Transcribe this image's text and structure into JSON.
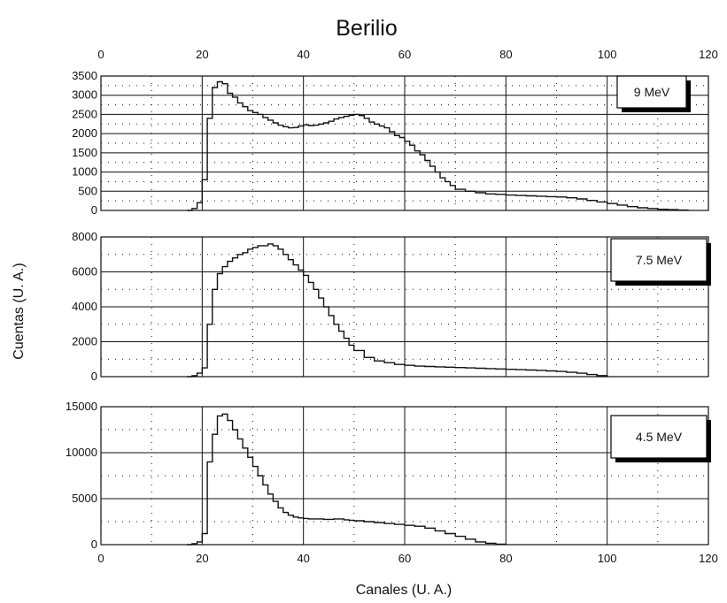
{
  "title": "Berilio",
  "ylabel": "Cuentas (U. A.)",
  "xlabel": "Canales (U. A.)",
  "chart_data": [
    {
      "type": "line",
      "step": true,
      "label": "9 MeV",
      "xlim": [
        0,
        120
      ],
      "ylim": [
        0,
        3500
      ],
      "x_ticks": [
        0,
        20,
        40,
        60,
        80,
        100,
        120
      ],
      "x_tick_labels": [
        "0",
        "20",
        "40",
        "60",
        "80",
        "100",
        "120"
      ],
      "x_tick_position": "top",
      "y_ticks": [
        0,
        500,
        1000,
        1500,
        2000,
        2500,
        3000,
        3500
      ],
      "y_tick_labels": [
        "0",
        "500",
        "1000",
        "1500",
        "2000",
        "2500",
        "3000",
        "3500"
      ],
      "grid": true,
      "x": [
        17,
        18,
        19,
        20,
        21,
        22,
        23,
        24,
        25,
        26,
        27,
        28,
        29,
        30,
        31,
        32,
        33,
        34,
        35,
        36,
        37,
        38,
        39,
        40,
        41,
        42,
        43,
        44,
        45,
        46,
        47,
        48,
        49,
        50,
        51,
        52,
        53,
        54,
        55,
        56,
        57,
        58,
        59,
        60,
        61,
        62,
        63,
        64,
        65,
        66,
        67,
        68,
        69,
        70,
        72,
        74,
        76,
        78,
        80,
        82,
        84,
        86,
        88,
        90,
        92,
        94,
        96,
        98,
        100,
        102,
        104,
        106,
        108,
        110,
        112,
        114,
        116
      ],
      "y": [
        0,
        50,
        200,
        800,
        2400,
        3200,
        3350,
        3300,
        3050,
        2950,
        2800,
        2700,
        2600,
        2550,
        2500,
        2420,
        2350,
        2280,
        2220,
        2180,
        2150,
        2160,
        2200,
        2230,
        2210,
        2220,
        2250,
        2280,
        2320,
        2380,
        2420,
        2450,
        2480,
        2500,
        2470,
        2400,
        2300,
        2250,
        2200,
        2150,
        2050,
        1950,
        1900,
        1800,
        1700,
        1550,
        1450,
        1300,
        1150,
        1000,
        850,
        750,
        650,
        550,
        500,
        460,
        430,
        420,
        400,
        390,
        380,
        370,
        360,
        350,
        330,
        300,
        260,
        220,
        180,
        140,
        100,
        70,
        50,
        30,
        20,
        10,
        0
      ]
    },
    {
      "type": "line",
      "step": true,
      "label": "7.5 MeV",
      "xlim": [
        0,
        120
      ],
      "ylim": [
        0,
        8000
      ],
      "x_ticks": [
        0,
        20,
        40,
        60,
        80,
        100,
        120
      ],
      "y_ticks": [
        0,
        2000,
        4000,
        6000,
        8000
      ],
      "y_tick_labels": [
        "0",
        "2000",
        "4000",
        "6000",
        "8000"
      ],
      "grid": true,
      "x": [
        17,
        18,
        19,
        20,
        21,
        22,
        23,
        24,
        25,
        26,
        27,
        28,
        29,
        30,
        31,
        32,
        33,
        34,
        35,
        36,
        37,
        38,
        39,
        40,
        41,
        42,
        43,
        44,
        45,
        46,
        47,
        48,
        49,
        50,
        52,
        54,
        56,
        58,
        60,
        62,
        64,
        66,
        68,
        70,
        72,
        74,
        76,
        78,
        80,
        82,
        84,
        86,
        88,
        90,
        92,
        94,
        96,
        98,
        100
      ],
      "y": [
        0,
        50,
        200,
        500,
        3000,
        5000,
        5900,
        6300,
        6600,
        6800,
        7000,
        7100,
        7300,
        7400,
        7500,
        7500,
        7600,
        7500,
        7300,
        7000,
        6700,
        6400,
        6100,
        5800,
        5400,
        5000,
        4500,
        4000,
        3500,
        3000,
        2600,
        2200,
        1800,
        1500,
        1100,
        900,
        800,
        700,
        650,
        600,
        580,
        560,
        540,
        520,
        500,
        480,
        460,
        440,
        420,
        400,
        380,
        360,
        330,
        300,
        250,
        200,
        120,
        60,
        0
      ]
    },
    {
      "type": "line",
      "step": true,
      "label": "4.5 MeV",
      "xlim": [
        0,
        120
      ],
      "ylim": [
        0,
        15000
      ],
      "x_ticks": [
        0,
        20,
        40,
        60,
        80,
        100,
        120
      ],
      "x_tick_labels": [
        "0",
        "20",
        "40",
        "60",
        "80",
        "100",
        "120"
      ],
      "x_tick_position": "bottom",
      "y_ticks": [
        0,
        5000,
        10000,
        15000
      ],
      "y_tick_labels": [
        "0",
        "5000",
        "10000",
        "15000"
      ],
      "grid": true,
      "x": [
        17,
        18,
        19,
        20,
        21,
        22,
        23,
        24,
        25,
        26,
        27,
        28,
        29,
        30,
        31,
        32,
        33,
        34,
        35,
        36,
        37,
        38,
        39,
        40,
        41,
        42,
        43,
        44,
        45,
        46,
        47,
        48,
        49,
        50,
        52,
        54,
        56,
        58,
        60,
        62,
        64,
        66,
        68,
        70,
        72,
        74,
        76,
        78,
        80
      ],
      "y": [
        0,
        100,
        300,
        1200,
        9000,
        12000,
        14000,
        14200,
        13500,
        12500,
        11500,
        10500,
        9500,
        8500,
        7500,
        6500,
        5500,
        4700,
        4000,
        3500,
        3200,
        3000,
        2900,
        2850,
        2800,
        2800,
        2800,
        2750,
        2750,
        2800,
        2800,
        2700,
        2650,
        2600,
        2500,
        2400,
        2300,
        2200,
        2100,
        2000,
        1800,
        1500,
        1200,
        900,
        600,
        300,
        150,
        50,
        0
      ]
    }
  ],
  "colors": {
    "line": "#111111",
    "grid": "#111111",
    "background": "#ffffff"
  }
}
